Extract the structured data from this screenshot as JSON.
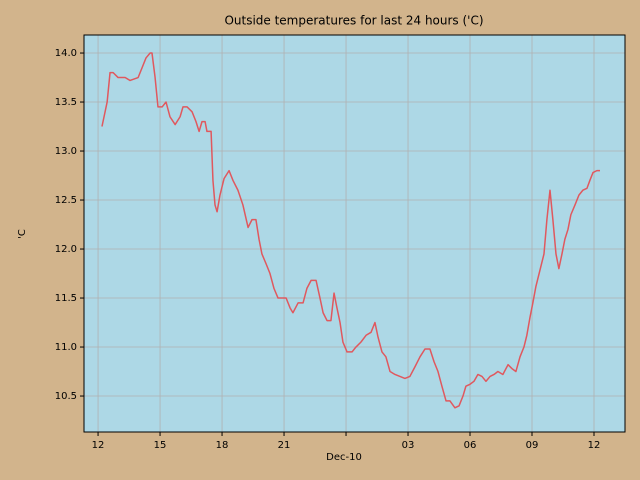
{
  "chart_data": {
    "type": "line",
    "title": "Outside temperatures for last 24 hours ('C)",
    "xlabel": "Dec-10",
    "ylabel": "'C",
    "grid": true,
    "xlim": [
      -0.68,
      25.5
    ],
    "ylim": [
      10.133,
      14.184
    ],
    "xticks": [
      {
        "value": 0,
        "label": "12"
      },
      {
        "value": 3,
        "label": "15"
      },
      {
        "value": 6,
        "label": "18"
      },
      {
        "value": 9,
        "label": "21"
      },
      {
        "value": 12,
        "label": null
      },
      {
        "value": 15,
        "label": "03"
      },
      {
        "value": 18,
        "label": "06"
      },
      {
        "value": 21,
        "label": "09"
      },
      {
        "value": 24,
        "label": "12"
      }
    ],
    "yticks": [
      10.5,
      {
        "value": 11,
        "label": "11.0"
      },
      11.5,
      {
        "value": 12,
        "label": "12.0"
      },
      12.5,
      {
        "value": 13,
        "label": "13.0"
      },
      13.5,
      {
        "value": 14,
        "label": "14.0"
      }
    ],
    "x": [
      0.19,
      0.29,
      0.44,
      0.58,
      0.73,
      0.97,
      1.31,
      1.55,
      1.94,
      2.13,
      2.32,
      2.52,
      2.61,
      2.76,
      2.9,
      3.1,
      3.29,
      3.48,
      3.73,
      3.97,
      4.11,
      4.31,
      4.55,
      4.74,
      4.89,
      5.03,
      5.18,
      5.27,
      5.47,
      5.56,
      5.66,
      5.76,
      5.9,
      6.1,
      6.34,
      6.53,
      6.77,
      7.01,
      7.26,
      7.45,
      7.64,
      7.79,
      7.93,
      8.13,
      8.32,
      8.51,
      8.71,
      8.9,
      9.1,
      9.29,
      9.43,
      9.68,
      9.92,
      10.11,
      10.31,
      10.55,
      10.74,
      10.89,
      11.08,
      11.27,
      11.42,
      11.56,
      11.71,
      11.85,
      12.05,
      12.29,
      12.48,
      12.72,
      12.97,
      13.21,
      13.4,
      13.55,
      13.74,
      13.93,
      14.13,
      14.37,
      14.61,
      14.85,
      15.09,
      15.34,
      15.58,
      15.82,
      16.06,
      16.26,
      16.45,
      16.64,
      16.84,
      17.03,
      17.27,
      17.47,
      17.66,
      17.8,
      18.0,
      18.19,
      18.38,
      18.58,
      18.77,
      18.97,
      19.16,
      19.35,
      19.59,
      19.84,
      20.03,
      20.22,
      20.42,
      20.61,
      20.75,
      20.9,
      21.04,
      21.19,
      21.38,
      21.58,
      21.72,
      21.87,
      22.01,
      22.16,
      22.3,
      22.45,
      22.59,
      22.74,
      22.88,
      23.08,
      23.27,
      23.46,
      23.66,
      23.8,
      23.95,
      24.14,
      24.29
    ],
    "series": [
      {
        "color": "#e0585e",
        "values": [
          13.25,
          13.35,
          13.5,
          13.8,
          13.8,
          13.75,
          13.75,
          13.72,
          13.75,
          13.85,
          13.95,
          14.0,
          14.0,
          13.75,
          13.45,
          13.45,
          13.5,
          13.35,
          13.27,
          13.35,
          13.45,
          13.45,
          13.4,
          13.3,
          13.2,
          13.3,
          13.3,
          13.2,
          13.2,
          12.7,
          12.45,
          12.38,
          12.55,
          12.72,
          12.8,
          12.7,
          12.6,
          12.45,
          12.22,
          12.3,
          12.3,
          12.1,
          11.95,
          11.85,
          11.75,
          11.6,
          11.5,
          11.5,
          11.5,
          11.4,
          11.35,
          11.45,
          11.45,
          11.6,
          11.68,
          11.68,
          11.5,
          11.35,
          11.27,
          11.27,
          11.55,
          11.4,
          11.25,
          11.05,
          10.95,
          10.95,
          11.0,
          11.05,
          11.12,
          11.15,
          11.25,
          11.1,
          10.95,
          10.9,
          10.75,
          10.72,
          10.7,
          10.68,
          10.7,
          10.8,
          10.9,
          10.98,
          10.98,
          10.85,
          10.75,
          10.6,
          10.45,
          10.45,
          10.38,
          10.4,
          10.5,
          10.6,
          10.62,
          10.65,
          10.72,
          10.7,
          10.65,
          10.7,
          10.72,
          10.75,
          10.72,
          10.82,
          10.78,
          10.75,
          10.9,
          11.0,
          11.12,
          11.3,
          11.45,
          11.62,
          11.78,
          11.95,
          12.3,
          12.6,
          12.3,
          11.95,
          11.8,
          11.95,
          12.1,
          12.2,
          12.35,
          12.45,
          12.55,
          12.6,
          12.62,
          12.7,
          12.78,
          12.8,
          12.8
        ]
      }
    ]
  }
}
